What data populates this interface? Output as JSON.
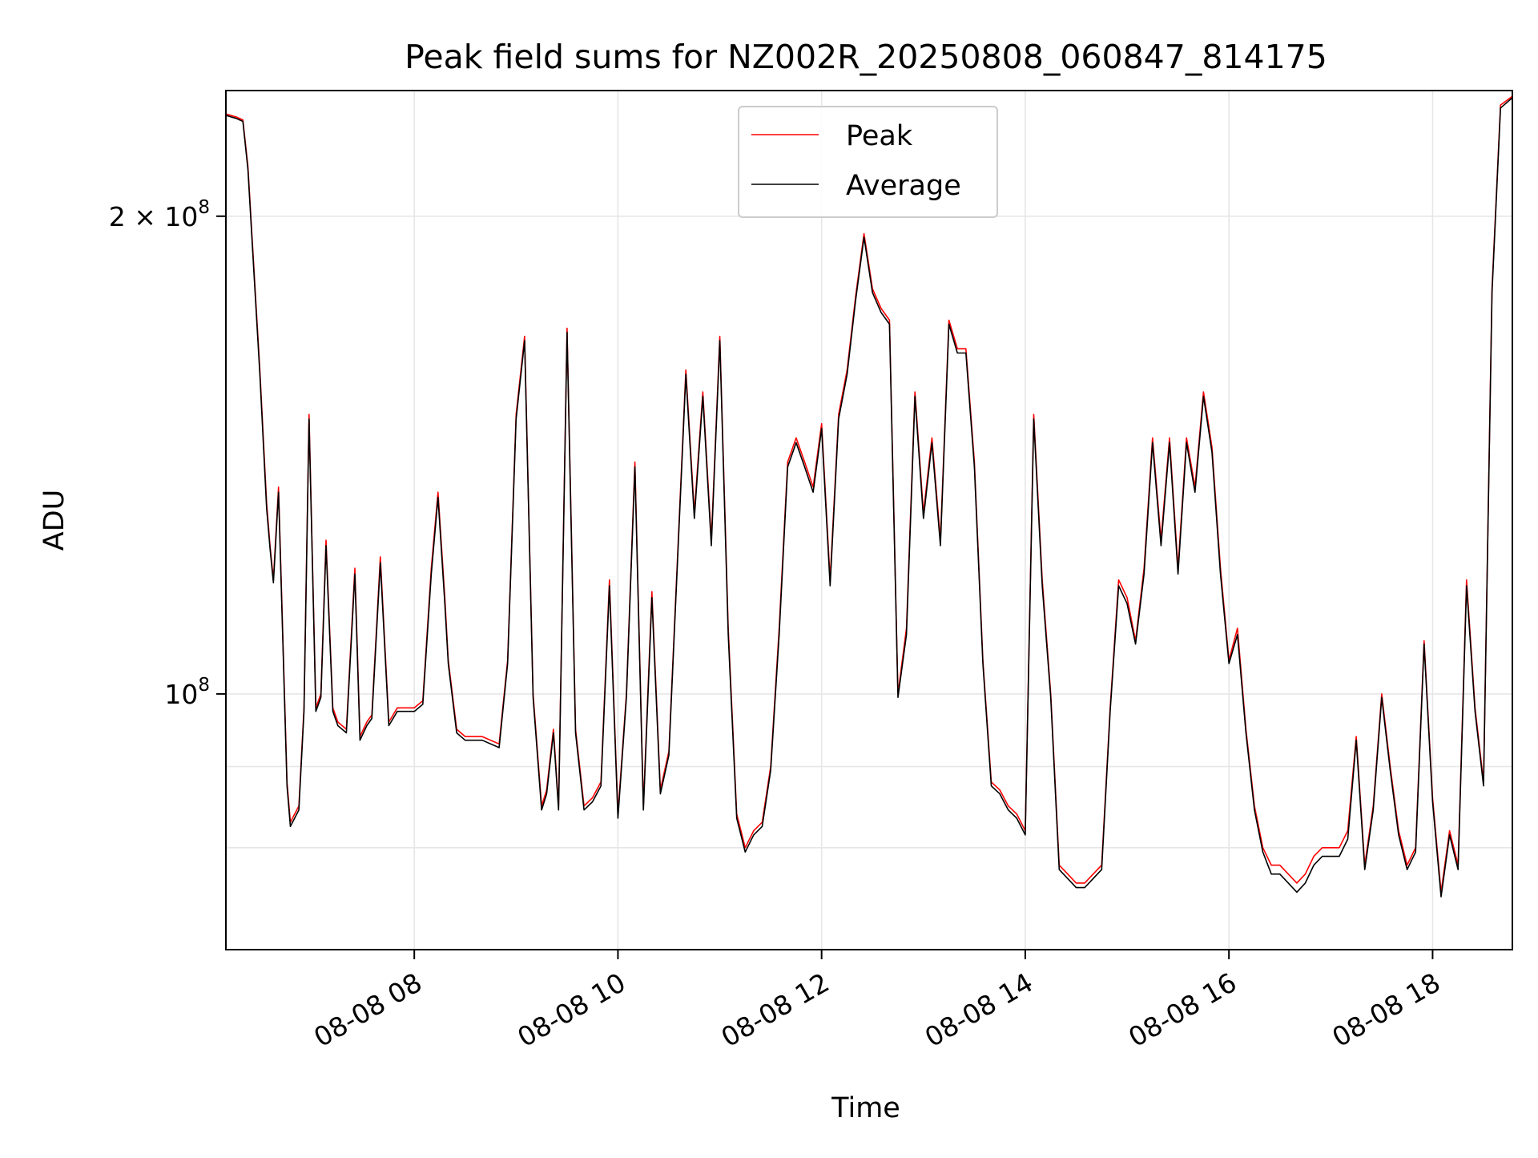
{
  "chart_data": {
    "type": "line",
    "title": "Peak field sums for NZ002R_20250808_060847_814175",
    "xlabel": "Time",
    "ylabel": "ADU",
    "yscale": "log",
    "ylim": [
      69000000,
      240000000
    ],
    "xlim": [
      "2025-08-08 06:09",
      "2025-08-08 18:47"
    ],
    "grid": true,
    "legend_position": "top-center",
    "x_ticks": [
      {
        "t": "2025-08-08 08:00",
        "label": "08-08 08"
      },
      {
        "t": "2025-08-08 10:00",
        "label": "08-08 10"
      },
      {
        "t": "2025-08-08 12:00",
        "label": "08-08 12"
      },
      {
        "t": "2025-08-08 14:00",
        "label": "08-08 14"
      },
      {
        "t": "2025-08-08 16:00",
        "label": "08-08 16"
      },
      {
        "t": "2025-08-08 18:00",
        "label": "08-08 18"
      }
    ],
    "y_ticks": [
      {
        "value": 100000000,
        "base": "10",
        "exp": "8"
      },
      {
        "value": 200000000,
        "base": "2 × 10",
        "exp": "8"
      }
    ],
    "y_minor_gridlines": [
      80000000,
      90000000
    ],
    "colors": {
      "Peak": "#ff0000",
      "Average": "#000000"
    },
    "series": [
      {
        "name": "Peak",
        "x": [
          "2025-08-08 06:09",
          "2025-08-08 06:15",
          "2025-08-08 06:19",
          "2025-08-08 06:22",
          "2025-08-08 06:29",
          "2025-08-08 06:33",
          "2025-08-08 06:35",
          "2025-08-08 06:37",
          "2025-08-08 06:40",
          "2025-08-08 06:45",
          "2025-08-08 06:47",
          "2025-08-08 06:52",
          "2025-08-08 06:55",
          "2025-08-08 06:58",
          "2025-08-08 07:02",
          "2025-08-08 07:05",
          "2025-08-08 07:08",
          "2025-08-08 07:12",
          "2025-08-08 07:15",
          "2025-08-08 07:20",
          "2025-08-08 07:25",
          "2025-08-08 07:28",
          "2025-08-08 07:32",
          "2025-08-08 07:35",
          "2025-08-08 07:40",
          "2025-08-08 07:45",
          "2025-08-08 07:50",
          "2025-08-08 08:00",
          "2025-08-08 08:05",
          "2025-08-08 08:10",
          "2025-08-08 08:14",
          "2025-08-08 08:18",
          "2025-08-08 08:20",
          "2025-08-08 08:25",
          "2025-08-08 08:30",
          "2025-08-08 08:40",
          "2025-08-08 08:50",
          "2025-08-08 08:55",
          "2025-08-08 09:00",
          "2025-08-08 09:05",
          "2025-08-08 09:10",
          "2025-08-08 09:15",
          "2025-08-08 09:18",
          "2025-08-08 09:22",
          "2025-08-08 09:25",
          "2025-08-08 09:30",
          "2025-08-08 09:35",
          "2025-08-08 09:40",
          "2025-08-08 09:45",
          "2025-08-08 09:50",
          "2025-08-08 09:55",
          "2025-08-08 10:00",
          "2025-08-08 10:05",
          "2025-08-08 10:10",
          "2025-08-08 10:15",
          "2025-08-08 10:20",
          "2025-08-08 10:25",
          "2025-08-08 10:30",
          "2025-08-08 10:40",
          "2025-08-08 10:45",
          "2025-08-08 10:50",
          "2025-08-08 10:55",
          "2025-08-08 11:00",
          "2025-08-08 11:05",
          "2025-08-08 11:10",
          "2025-08-08 11:15",
          "2025-08-08 11:20",
          "2025-08-08 11:25",
          "2025-08-08 11:30",
          "2025-08-08 11:35",
          "2025-08-08 11:40",
          "2025-08-08 11:45",
          "2025-08-08 11:50",
          "2025-08-08 11:55",
          "2025-08-08 12:00",
          "2025-08-08 12:05",
          "2025-08-08 12:10",
          "2025-08-08 12:15",
          "2025-08-08 12:20",
          "2025-08-08 12:25",
          "2025-08-08 12:30",
          "2025-08-08 12:35",
          "2025-08-08 12:40",
          "2025-08-08 12:45",
          "2025-08-08 12:50",
          "2025-08-08 12:55",
          "2025-08-08 13:00",
          "2025-08-08 13:05",
          "2025-08-08 13:10",
          "2025-08-08 13:15",
          "2025-08-08 13:20",
          "2025-08-08 13:25",
          "2025-08-08 13:30",
          "2025-08-08 13:35",
          "2025-08-08 13:40",
          "2025-08-08 13:45",
          "2025-08-08 13:50",
          "2025-08-08 13:55",
          "2025-08-08 14:00",
          "2025-08-08 14:05",
          "2025-08-08 14:10",
          "2025-08-08 14:15",
          "2025-08-08 14:20",
          "2025-08-08 14:25",
          "2025-08-08 14:30",
          "2025-08-08 14:35",
          "2025-08-08 14:40",
          "2025-08-08 14:45",
          "2025-08-08 14:50",
          "2025-08-08 14:55",
          "2025-08-08 15:00",
          "2025-08-08 15:05",
          "2025-08-08 15:10",
          "2025-08-08 15:15",
          "2025-08-08 15:20",
          "2025-08-08 15:25",
          "2025-08-08 15:30",
          "2025-08-08 15:35",
          "2025-08-08 15:40",
          "2025-08-08 15:45",
          "2025-08-08 15:50",
          "2025-08-08 15:55",
          "2025-08-08 16:00",
          "2025-08-08 16:05",
          "2025-08-08 16:10",
          "2025-08-08 16:15",
          "2025-08-08 16:20",
          "2025-08-08 16:25",
          "2025-08-08 16:30",
          "2025-08-08 16:35",
          "2025-08-08 16:40",
          "2025-08-08 16:45",
          "2025-08-08 16:50",
          "2025-08-08 16:55",
          "2025-08-08 17:00",
          "2025-08-08 17:05",
          "2025-08-08 17:10",
          "2025-08-08 17:15",
          "2025-08-08 17:20",
          "2025-08-08 17:25",
          "2025-08-08 17:30",
          "2025-08-08 17:35",
          "2025-08-08 17:40",
          "2025-08-08 17:45",
          "2025-08-08 17:50",
          "2025-08-08 17:55",
          "2025-08-08 18:00",
          "2025-08-08 18:05",
          "2025-08-08 18:10",
          "2025-08-08 18:15",
          "2025-08-08 18:20",
          "2025-08-08 18:25",
          "2025-08-08 18:30",
          "2025-08-08 18:35",
          "2025-08-08 18:40",
          "2025-08-08 18:47"
        ],
        "y": [
          232000000,
          231000000,
          230000000,
          215000000,
          160000000,
          132000000,
          124000000,
          118000000,
          135000000,
          88000000,
          83000000,
          85000000,
          98000000,
          150000000,
          98000000,
          100000000,
          125000000,
          98000000,
          96000000,
          95000000,
          120000000,
          94000000,
          96000000,
          97000000,
          122000000,
          96000000,
          98000000,
          98000000,
          99000000,
          120000000,
          134000000,
          115000000,
          105000000,
          95000000,
          94000000,
          94000000,
          93000000,
          105000000,
          150000000,
          168000000,
          100000000,
          85000000,
          87000000,
          95000000,
          85000000,
          170000000,
          95000000,
          85000000,
          86000000,
          88000000,
          118000000,
          84000000,
          100000000,
          140000000,
          85000000,
          116000000,
          87000000,
          92000000,
          160000000,
          130000000,
          155000000,
          125000000,
          168000000,
          110000000,
          84000000,
          80000000,
          82000000,
          83000000,
          90000000,
          110000000,
          140000000,
          145000000,
          140000000,
          135000000,
          148000000,
          118000000,
          150000000,
          160000000,
          178000000,
          195000000,
          180000000,
          175000000,
          172000000,
          100000000,
          110000000,
          155000000,
          130000000,
          145000000,
          125000000,
          172000000,
          165000000,
          165000000,
          140000000,
          105000000,
          88000000,
          87000000,
          85000000,
          84000000,
          82000000,
          150000000,
          118000000,
          100000000,
          78000000,
          77000000,
          76000000,
          76000000,
          77000000,
          78000000,
          98000000,
          118000000,
          115000000,
          108000000,
          120000000,
          145000000,
          125000000,
          145000000,
          120000000,
          145000000,
          135000000,
          155000000,
          143000000,
          120000000,
          105000000,
          110000000,
          95000000,
          85000000,
          80000000,
          78000000,
          78000000,
          77000000,
          76000000,
          77000000,
          79000000,
          80000000,
          80000000,
          80000000,
          82000000,
          94000000,
          78000000,
          85000000,
          100000000,
          90000000,
          82000000,
          78000000,
          80000000,
          108000000,
          86000000,
          75000000,
          82000000,
          78000000,
          118000000,
          98000000,
          88000000,
          180000000,
          235000000,
          238000000
        ],
        "stroke": "#ff0000"
      },
      {
        "name": "Average",
        "x": [
          "2025-08-08 06:09",
          "2025-08-08 06:15",
          "2025-08-08 06:19",
          "2025-08-08 06:22",
          "2025-08-08 06:29",
          "2025-08-08 06:33",
          "2025-08-08 06:35",
          "2025-08-08 06:37",
          "2025-08-08 06:40",
          "2025-08-08 06:45",
          "2025-08-08 06:47",
          "2025-08-08 06:52",
          "2025-08-08 06:55",
          "2025-08-08 06:58",
          "2025-08-08 07:02",
          "2025-08-08 07:05",
          "2025-08-08 07:08",
          "2025-08-08 07:12",
          "2025-08-08 07:15",
          "2025-08-08 07:20",
          "2025-08-08 07:25",
          "2025-08-08 07:28",
          "2025-08-08 07:32",
          "2025-08-08 07:35",
          "2025-08-08 07:40",
          "2025-08-08 07:45",
          "2025-08-08 07:50",
          "2025-08-08 08:00",
          "2025-08-08 08:05",
          "2025-08-08 08:10",
          "2025-08-08 08:14",
          "2025-08-08 08:18",
          "2025-08-08 08:20",
          "2025-08-08 08:25",
          "2025-08-08 08:30",
          "2025-08-08 08:40",
          "2025-08-08 08:50",
          "2025-08-08 08:55",
          "2025-08-08 09:00",
          "2025-08-08 09:05",
          "2025-08-08 09:10",
          "2025-08-08 09:15",
          "2025-08-08 09:18",
          "2025-08-08 09:22",
          "2025-08-08 09:25",
          "2025-08-08 09:30",
          "2025-08-08 09:35",
          "2025-08-08 09:40",
          "2025-08-08 09:45",
          "2025-08-08 09:50",
          "2025-08-08 09:55",
          "2025-08-08 10:00",
          "2025-08-08 10:05",
          "2025-08-08 10:10",
          "2025-08-08 10:15",
          "2025-08-08 10:20",
          "2025-08-08 10:25",
          "2025-08-08 10:30",
          "2025-08-08 10:40",
          "2025-08-08 10:45",
          "2025-08-08 10:50",
          "2025-08-08 10:55",
          "2025-08-08 11:00",
          "2025-08-08 11:05",
          "2025-08-08 11:10",
          "2025-08-08 11:15",
          "2025-08-08 11:20",
          "2025-08-08 11:25",
          "2025-08-08 11:30",
          "2025-08-08 11:35",
          "2025-08-08 11:40",
          "2025-08-08 11:45",
          "2025-08-08 11:50",
          "2025-08-08 11:55",
          "2025-08-08 12:00",
          "2025-08-08 12:05",
          "2025-08-08 12:10",
          "2025-08-08 12:15",
          "2025-08-08 12:20",
          "2025-08-08 12:25",
          "2025-08-08 12:30",
          "2025-08-08 12:35",
          "2025-08-08 12:40",
          "2025-08-08 12:45",
          "2025-08-08 12:50",
          "2025-08-08 12:55",
          "2025-08-08 13:00",
          "2025-08-08 13:05",
          "2025-08-08 13:10",
          "2025-08-08 13:15",
          "2025-08-08 13:20",
          "2025-08-08 13:25",
          "2025-08-08 13:30",
          "2025-08-08 13:35",
          "2025-08-08 13:40",
          "2025-08-08 13:45",
          "2025-08-08 13:50",
          "2025-08-08 13:55",
          "2025-08-08 14:00",
          "2025-08-08 14:05",
          "2025-08-08 14:10",
          "2025-08-08 14:15",
          "2025-08-08 14:20",
          "2025-08-08 14:25",
          "2025-08-08 14:30",
          "2025-08-08 14:35",
          "2025-08-08 14:40",
          "2025-08-08 14:45",
          "2025-08-08 14:50",
          "2025-08-08 14:55",
          "2025-08-08 15:00",
          "2025-08-08 15:05",
          "2025-08-08 15:10",
          "2025-08-08 15:15",
          "2025-08-08 15:20",
          "2025-08-08 15:25",
          "2025-08-08 15:30",
          "2025-08-08 15:35",
          "2025-08-08 15:40",
          "2025-08-08 15:45",
          "2025-08-08 15:50",
          "2025-08-08 15:55",
          "2025-08-08 16:00",
          "2025-08-08 16:05",
          "2025-08-08 16:10",
          "2025-08-08 16:15",
          "2025-08-08 16:20",
          "2025-08-08 16:25",
          "2025-08-08 16:30",
          "2025-08-08 16:35",
          "2025-08-08 16:40",
          "2025-08-08 16:45",
          "2025-08-08 16:50",
          "2025-08-08 16:55",
          "2025-08-08 17:00",
          "2025-08-08 17:05",
          "2025-08-08 17:10",
          "2025-08-08 17:15",
          "2025-08-08 17:20",
          "2025-08-08 17:25",
          "2025-08-08 17:30",
          "2025-08-08 17:35",
          "2025-08-08 17:40",
          "2025-08-08 17:45",
          "2025-08-08 17:50",
          "2025-08-08 17:55",
          "2025-08-08 18:00",
          "2025-08-08 18:05",
          "2025-08-08 18:10",
          "2025-08-08 18:15",
          "2025-08-08 18:20",
          "2025-08-08 18:25",
          "2025-08-08 18:30",
          "2025-08-08 18:35",
          "2025-08-08 18:40",
          "2025-08-08 18:47"
        ],
        "y": [
          231500000,
          230500000,
          229500000,
          214000000,
          159000000,
          131000000,
          123500000,
          117500000,
          134000000,
          87500000,
          82500000,
          84500000,
          97500000,
          149000000,
          97500000,
          99500000,
          124000000,
          97500000,
          95500000,
          94500000,
          119000000,
          93500000,
          95500000,
          96500000,
          121000000,
          95500000,
          97500000,
          97500000,
          98500000,
          119000000,
          133000000,
          114000000,
          104500000,
          94500000,
          93500000,
          93500000,
          92500000,
          104500000,
          149000000,
          167000000,
          99500000,
          84500000,
          86500000,
          94500000,
          84500000,
          169000000,
          94500000,
          84500000,
          85500000,
          87500000,
          117000000,
          83500000,
          99500000,
          139000000,
          84500000,
          115000000,
          86500000,
          91500000,
          159000000,
          129000000,
          154000000,
          124000000,
          167000000,
          109000000,
          83500000,
          79500000,
          81500000,
          82500000,
          89500000,
          109000000,
          139000000,
          144000000,
          139000000,
          134000000,
          147000000,
          117000000,
          149000000,
          159000000,
          177000000,
          194000000,
          179000000,
          174000000,
          171000000,
          99500000,
          109000000,
          154000000,
          129000000,
          144000000,
          124000000,
          171000000,
          164000000,
          164000000,
          139000000,
          104500000,
          87500000,
          86500000,
          84500000,
          83500000,
          81500000,
          149000000,
          117000000,
          99500000,
          77500000,
          76500000,
          75500000,
          75500000,
          76500000,
          77500000,
          97500000,
          117000000,
          114000000,
          107500000,
          119000000,
          144000000,
          124000000,
          144000000,
          119000000,
          144000000,
          134000000,
          154000000,
          142000000,
          119000000,
          104500000,
          109000000,
          94500000,
          84500000,
          79500000,
          77000000,
          77000000,
          76000000,
          75000000,
          76000000,
          78000000,
          79000000,
          79000000,
          79000000,
          81000000,
          93500000,
          77500000,
          84500000,
          99500000,
          89500000,
          81500000,
          77500000,
          79500000,
          107500000,
          85500000,
          74500000,
          81500000,
          77500000,
          117000000,
          97500000,
          87500000,
          179000000,
          234000000,
          237500000
        ],
        "stroke": "#000000"
      }
    ]
  }
}
